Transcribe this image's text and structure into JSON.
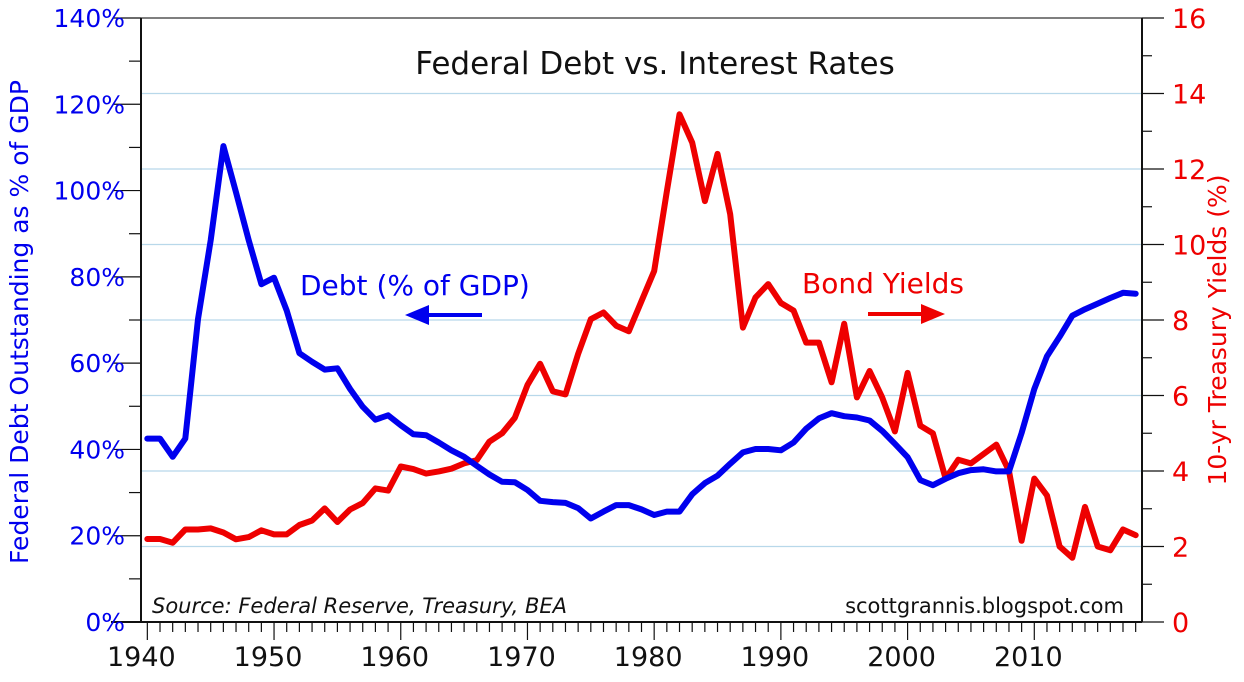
{
  "chart_data": {
    "type": "line",
    "title": "Federal Debt vs. Interest Rates",
    "ylabel_left": "Federal Debt Outstanding as % of GDP",
    "ylabel_right": "10-yr Treasury Yields (%)",
    "source": "Source:  Federal Reserve, Treasury, BEA",
    "credit": "scottgrannis.blogspot.com",
    "xlim": [
      1939.5,
      2018.5
    ],
    "ylim_left": [
      0,
      140
    ],
    "ylim_right": [
      0,
      16
    ],
    "x_ticks": [
      "1940",
      "1950",
      "1960",
      "1970",
      "1980",
      "1990",
      "2000",
      "2010"
    ],
    "y_ticks_left": [
      "0%",
      "20%",
      "40%",
      "60%",
      "80%",
      "100%",
      "120%",
      "140%"
    ],
    "y_ticks_right": [
      "0",
      "2",
      "4",
      "6",
      "8",
      "10",
      "12",
      "14",
      "16"
    ],
    "grid": "horizontal, at right-axis even values",
    "x_start": 1940,
    "series": [
      {
        "name": "Debt (% of GDP)",
        "axis": "left",
        "color": "#0000ee",
        "arrow": "left",
        "values": [
          42.5,
          42.5,
          38.3,
          42.5,
          70.2,
          88.5,
          110.3,
          99.6,
          88.5,
          78.3,
          79.8,
          72.2,
          62.3,
          60.3,
          58.5,
          58.8,
          54,
          49.9,
          46.9,
          47.9,
          45.6,
          43.5,
          43.3,
          41.6,
          39.8,
          38.3,
          36.2,
          34.2,
          32.5,
          32.4,
          30.6,
          28.1,
          27.8,
          27.6,
          26.4,
          24.0,
          25.6,
          27.1,
          27.1,
          26.1,
          24.8,
          25.6,
          25.6,
          29.6,
          32.2,
          33.9,
          36.7,
          39.3,
          40.1,
          40.1,
          39.8,
          41.6,
          44.8,
          47.2,
          48.4,
          47.7,
          47.4,
          46.7,
          44.3,
          41.3,
          38.2,
          32.9,
          31.7,
          33.2,
          34.5,
          35.2,
          35.4,
          34.9,
          34.9,
          43.8,
          54.0,
          61.6,
          66.1,
          71.0,
          72.5,
          73.8,
          75.1,
          76.3,
          76.1
        ]
      },
      {
        "name": "Bond Yields",
        "axis": "right",
        "color": "#ee0000",
        "arrow": "right",
        "values": [
          2.2,
          2.2,
          2.1,
          2.45,
          2.45,
          2.48,
          2.37,
          2.19,
          2.25,
          2.43,
          2.32,
          2.32,
          2.57,
          2.69,
          3.01,
          2.65,
          2.98,
          3.15,
          3.54,
          3.48,
          4.12,
          4.05,
          3.93,
          3.99,
          4.06,
          4.2,
          4.29,
          4.78,
          5.0,
          5.41,
          6.28,
          6.84,
          6.11,
          6.03,
          7.1,
          8.02,
          8.2,
          7.85,
          7.7,
          8.5,
          9.3,
          11.4,
          13.45,
          12.7,
          11.15,
          12.4,
          10.8,
          7.8,
          8.6,
          8.95,
          8.45,
          8.25,
          7.4,
          7.4,
          6.35,
          7.9,
          5.95,
          6.65,
          5.95,
          5.05,
          6.6,
          5.2,
          5.0,
          3.8,
          4.3,
          4.2,
          4.45,
          4.7,
          4.0,
          2.15,
          3.8,
          3.35,
          2.0,
          1.7,
          3.05,
          2.0,
          1.9,
          2.45,
          2.3
        ]
      }
    ]
  }
}
